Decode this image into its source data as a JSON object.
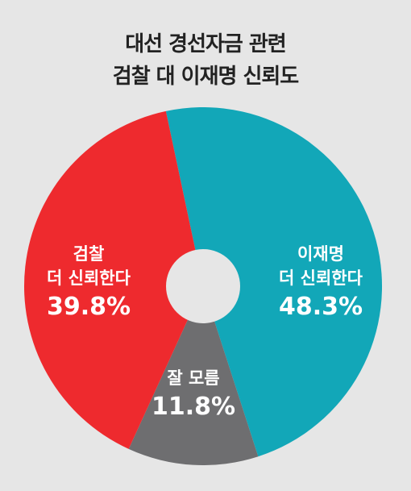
{
  "chart_data": {
    "type": "pie",
    "title": "대선 경선자금 관련",
    "subtitle": "검찰 대 이재명 신뢰도",
    "slices": [
      {
        "label_lines": [
          "이재명",
          "더 신뢰한다"
        ],
        "value": 48.3,
        "value_text": "48.3%",
        "color": "#12a7b8"
      },
      {
        "label_lines": [
          "잘 모름"
        ],
        "value": 11.8,
        "value_text": "11.8%",
        "color": "#6e6e70"
      },
      {
        "label_lines": [
          "검찰",
          "더 신뢰한다"
        ],
        "value": 39.8,
        "value_text": "39.8%",
        "color": "#ee2a2e"
      }
    ],
    "legend": "none",
    "grid": false
  }
}
